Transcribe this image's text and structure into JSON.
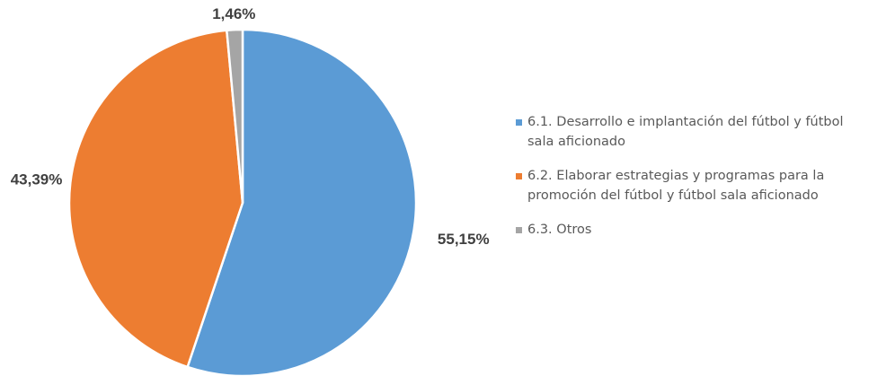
{
  "chart_data": {
    "type": "pie",
    "title": "",
    "series": [
      {
        "values": [
          55.15,
          43.39,
          1.46
        ],
        "labels": [
          "55,15%",
          "43,39%",
          "1,46%"
        ]
      }
    ],
    "categories": [
      "6.1. Desarrollo e implantación del fútbol y fútbol sala aficionado",
      "6.2. Elaborar estrategias y programas para la promoción del fútbol y fútbol sala aficionado",
      "6.3. Otros"
    ],
    "colors": [
      "#5B9BD5",
      "#ED7D31",
      "#A5A5A5"
    ],
    "legend": {
      "position": "right",
      "items": [
        {
          "line1": "6.1. Desarrollo e implantación del fútbol y fútbol",
          "line2": "sala aficionado",
          "color": "#5B9BD5"
        },
        {
          "line1": "6.2. Elaborar estrategias y programas para la",
          "line2": "promoción del fútbol y fútbol sala aficionado",
          "color": "#ED7D31"
        },
        {
          "line1": "6.3. Otros",
          "line2": "",
          "color": "#A5A5A5"
        }
      ]
    }
  }
}
